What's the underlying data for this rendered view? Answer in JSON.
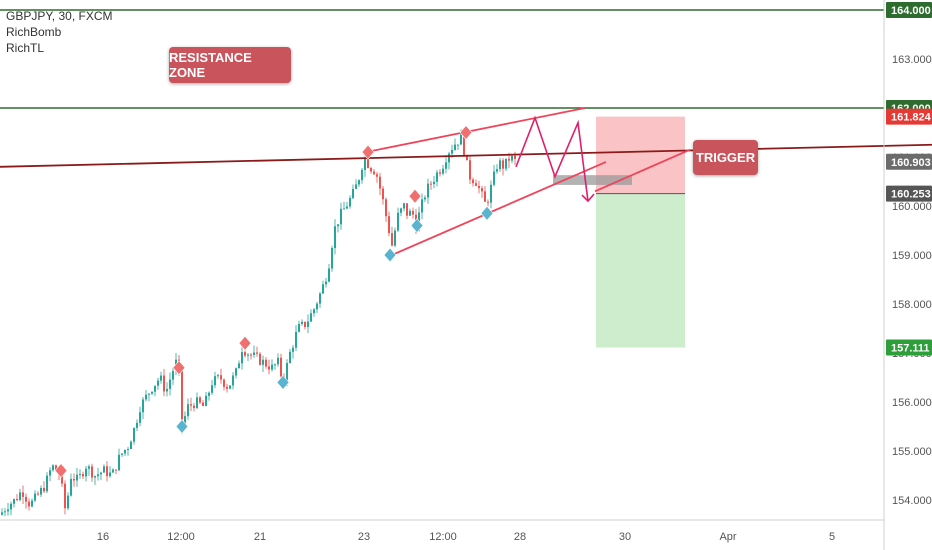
{
  "symbol_line": "GBPJPY, 30, FXCM",
  "indicators": [
    "RichBomb",
    "RichTL"
  ],
  "annotations": {
    "resistance_zone": "RESISTANCE ZONE",
    "trigger": "TRIGGER"
  },
  "colors": {
    "green_line": "#2e6b2e",
    "dark_red_line": "#8b1a1a",
    "pattern_line": "#f0445a",
    "zigzag": "#e0206a",
    "label_box": "#c9545c",
    "loss_zone": "#f9b8bb",
    "profit_zone": "#c8ebc8",
    "up_candle": "#26a69a",
    "down_candle": "#ef5350",
    "top_marker": "#f07070",
    "bottom_marker": "#5ab4d0"
  },
  "chart_data": {
    "type": "candlestick",
    "ylim": [
      153.6,
      164.15
    ],
    "y_ticks": [
      "164.000",
      "163.000",
      "162.000",
      "161.000",
      "160.000",
      "159.000",
      "158.000",
      "157.000",
      "156.000",
      "155.000",
      "154.000"
    ],
    "x_ticks": [
      "16",
      "12:00",
      "21",
      "23",
      "12:00",
      "28",
      "30",
      "Apr",
      "5"
    ],
    "price_labels": [
      {
        "value": "164.000",
        "kind": "level"
      },
      {
        "value": "162.000",
        "kind": "level"
      },
      {
        "value": "161.824",
        "kind": "stop"
      },
      {
        "value": "160.903",
        "kind": "current"
      },
      {
        "value": "160.253",
        "kind": "entry"
      },
      {
        "value": "157.111",
        "kind": "target"
      }
    ],
    "horizontal_levels": [
      164.0,
      162.0
    ],
    "close_path": [
      [
        0,
        153.7
      ],
      [
        8,
        153.9
      ],
      [
        15,
        154.0
      ],
      [
        22,
        154.2
      ],
      [
        30,
        153.9
      ],
      [
        38,
        154.1
      ],
      [
        45,
        154.3
      ],
      [
        52,
        154.7
      ],
      [
        60,
        154.5
      ],
      [
        66,
        153.7
      ],
      [
        70,
        154.5
      ],
      [
        78,
        154.4
      ],
      [
        86,
        154.7
      ],
      [
        95,
        154.5
      ],
      [
        104,
        154.6
      ],
      [
        112,
        154.5
      ],
      [
        120,
        154.9
      ],
      [
        128,
        155.1
      ],
      [
        135,
        155.5
      ],
      [
        140,
        155.9
      ],
      [
        146,
        156.1
      ],
      [
        152,
        156.3
      ],
      [
        160,
        156.5
      ],
      [
        166,
        156.2
      ],
      [
        172,
        156.6
      ],
      [
        178,
        156.9
      ],
      [
        182,
        155.5
      ],
      [
        188,
        155.9
      ],
      [
        196,
        156.0
      ],
      [
        204,
        155.9
      ],
      [
        212,
        156.4
      ],
      [
        220,
        156.5
      ],
      [
        228,
        156.3
      ],
      [
        236,
        156.6
      ],
      [
        242,
        157.1
      ],
      [
        248,
        157.0
      ],
      [
        256,
        156.9
      ],
      [
        264,
        156.8
      ],
      [
        272,
        156.7
      ],
      [
        278,
        156.8
      ],
      [
        283,
        156.4
      ],
      [
        290,
        157.0
      ],
      [
        298,
        157.5
      ],
      [
        306,
        157.6
      ],
      [
        314,
        157.9
      ],
      [
        322,
        158.3
      ],
      [
        328,
        158.7
      ],
      [
        334,
        159.5
      ],
      [
        340,
        159.8
      ],
      [
        346,
        160.0
      ],
      [
        352,
        160.2
      ],
      [
        358,
        160.5
      ],
      [
        364,
        161.0
      ],
      [
        370,
        160.8
      ],
      [
        376,
        160.7
      ],
      [
        382,
        160.2
      ],
      [
        388,
        159.6
      ],
      [
        392,
        159.2
      ],
      [
        398,
        159.8
      ],
      [
        404,
        160.0
      ],
      [
        408,
        159.8
      ],
      [
        412,
        159.9
      ],
      [
        416,
        159.6
      ],
      [
        420,
        159.9
      ],
      [
        426,
        160.3
      ],
      [
        432,
        160.5
      ],
      [
        438,
        160.7
      ],
      [
        442,
        160.8
      ],
      [
        448,
        161.1
      ],
      [
        456,
        161.3
      ],
      [
        462,
        161.4
      ],
      [
        466,
        160.9
      ],
      [
        470,
        160.6
      ],
      [
        476,
        160.5
      ],
      [
        480,
        160.3
      ],
      [
        486,
        160.0
      ],
      [
        490,
        160.3
      ],
      [
        494,
        160.6
      ],
      [
        498,
        160.9
      ],
      [
        504,
        160.8
      ],
      [
        510,
        161.0
      ],
      [
        516,
        160.9
      ]
    ],
    "top_markers": [
      [
        61,
        154.6
      ],
      [
        179,
        156.7
      ],
      [
        245,
        157.2
      ],
      [
        368,
        161.1
      ],
      [
        415,
        160.2
      ],
      [
        466,
        161.5
      ]
    ],
    "bottom_markers": [
      [
        182,
        155.5
      ],
      [
        283,
        156.4
      ],
      [
        390,
        159.0
      ],
      [
        417,
        159.6
      ],
      [
        487,
        159.85
      ]
    ],
    "trendlines": [
      {
        "name": "resistance_upper",
        "from": [
          366,
          161.1
        ],
        "to": [
          585,
          162.0
        ]
      },
      {
        "name": "support_lower",
        "from": [
          392,
          159.0
        ],
        "to": [
          606,
          160.9
        ]
      },
      {
        "name": "horizontal_trend",
        "from": [
          0,
          160.8
        ],
        "to": [
          932,
          161.25
        ]
      },
      {
        "name": "trigger_arrow",
        "from": [
          595,
          160.3
        ],
        "to": [
          690,
          161.15
        ]
      }
    ],
    "zigzag": [
      [
        516,
        160.8
      ],
      [
        535,
        161.8
      ],
      [
        555,
        160.6
      ],
      [
        578,
        161.7
      ],
      [
        588,
        160.1
      ]
    ],
    "risk_box": {
      "x0": 596,
      "x1": 685,
      "stop": 161.824,
      "entry": 160.253,
      "target": 157.111
    },
    "entry_zone": {
      "x0": 553,
      "x1": 632,
      "y_top": 160.63,
      "y_bottom": 160.43
    }
  }
}
